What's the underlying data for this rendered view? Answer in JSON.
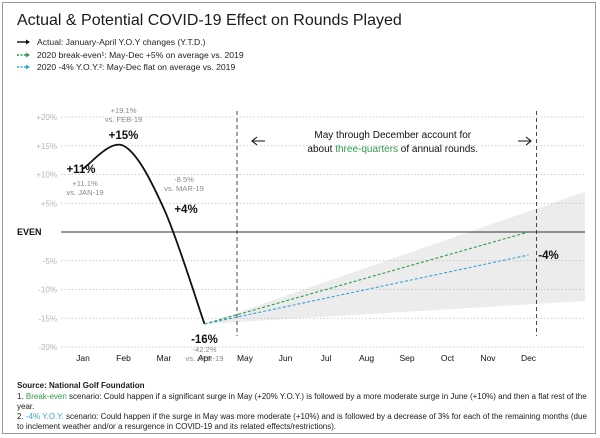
{
  "chart_data": {
    "type": "line",
    "title": "Actual & Potential COVID-19 Effect on Rounds Played",
    "legend": {
      "placement": "top-left",
      "entries": [
        {
          "label": "Actual: January-April Y.O.Y changes (Y.T.D.)",
          "color": "#111111",
          "style": "solid"
        },
        {
          "label": "2020 break-even¹: May-Dec +5% on average vs. 2019",
          "color": "#2e9d4a",
          "style": "dashed"
        },
        {
          "label": "2020 -4% Y.O.Y.²: May-Dec flat on average vs. 2019",
          "color": "#3aa3d6",
          "style": "dashed"
        }
      ]
    },
    "categories": [
      "Jan",
      "Feb",
      "Mar",
      "Apr",
      "May",
      "Jun",
      "Jul",
      "Aug",
      "Sep",
      "Oct",
      "Nov",
      "Dec"
    ],
    "y_ticks": [
      {
        "value": 20,
        "label": "+20%"
      },
      {
        "value": 15,
        "label": "+15%"
      },
      {
        "value": 10,
        "label": "+10%"
      },
      {
        "value": 5,
        "label": "+5%"
      },
      {
        "value": 0,
        "label": "EVEN"
      },
      {
        "value": -5,
        "label": "-5%"
      },
      {
        "value": -10,
        "label": "-10%"
      },
      {
        "value": -15,
        "label": "-15%"
      },
      {
        "value": -20,
        "label": "-20%"
      }
    ],
    "ylim": [
      -23,
      23
    ],
    "grid": "horizontal",
    "series": [
      {
        "name": "Actual",
        "style": "solid",
        "color": "#111111",
        "points": [
          {
            "x": "Jan",
            "y": 11
          },
          {
            "x": "Feb",
            "y": 15
          },
          {
            "x": "Mar",
            "y": 4
          },
          {
            "x": "Apr",
            "y": -16
          }
        ]
      },
      {
        "name": "2020 break-even",
        "style": "dashed",
        "color": "#2e9d4a",
        "points": [
          {
            "x": "Apr",
            "y": -16
          },
          {
            "x": "Dec",
            "y": 0
          }
        ]
      },
      {
        "name": "2020 -4% Y.O.Y.",
        "style": "dashed",
        "color": "#3aa3d6",
        "points": [
          {
            "x": "Apr",
            "y": -16
          },
          {
            "x": "Dec",
            "y": -4
          }
        ]
      }
    ],
    "range_band": {
      "from": {
        "x": "Apr",
        "y": -16
      },
      "to_high": 3,
      "to_low": -10,
      "color": "#ececec"
    },
    "point_labels": [
      {
        "x": "Jan",
        "y": 11,
        "main": "+11%",
        "sub": [
          "+11.1%",
          "vs. JAN-19"
        ]
      },
      {
        "x": "Feb",
        "y": 15,
        "main": "+15%",
        "sub": [
          "+19.1%",
          "vs. FEB-19"
        ]
      },
      {
        "x": "Mar",
        "y": 4,
        "main": "+4%",
        "sub": [
          "-8.5%",
          "vs. MAR-19"
        ]
      },
      {
        "x": "Apr",
        "y": -16,
        "main": "-16%",
        "sub": [
          "-42.2%",
          "vs. APR-19"
        ]
      },
      {
        "x": "Dec",
        "y": -4,
        "main": "-4%",
        "sub": []
      }
    ],
    "annotation": {
      "line1": "May through December account for",
      "line2_prefix": "about ",
      "line2_highlight": "three-quarters",
      "line2_suffix": " of annual rounds.",
      "highlight_color": "#2e9d4a",
      "span": [
        "May",
        "Dec"
      ]
    }
  },
  "footer": {
    "source": "Source: National Golf Foundation",
    "note1_prefix": "1. ",
    "note1_highlight": "Break-even",
    "note1_text": " scenario: Could happen if a significant surge in May (+20% Y.O.Y.) is followed by a more moderate surge in June (+10%) and then a flat rest of the year.",
    "note2_prefix": "2. ",
    "note2_highlight": "-4% Y.O.Y.",
    "note2_text": " scenario: Could happen if the surge in May was more moderate (+10%) and is followed by a decrease of 3% for each of the remaining months (due to inclement weather and/or a resurgence in COVID-19 and its related effects/restrictions).",
    "note1_color": "#2e9d4a",
    "note2_color": "#3aa3d6"
  }
}
